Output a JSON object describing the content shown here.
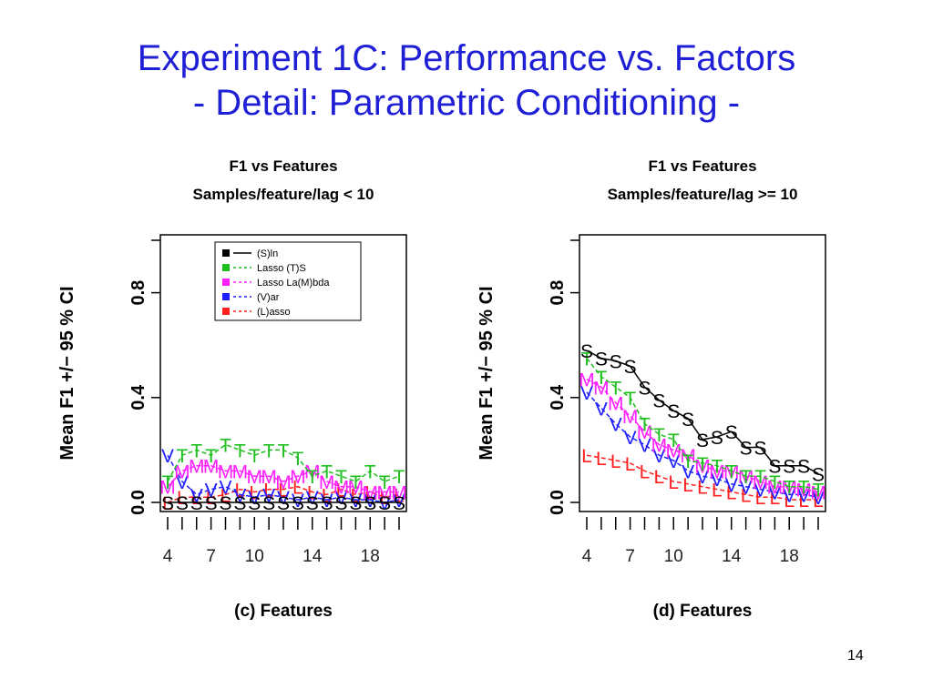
{
  "slide": {
    "title_line1": "Experiment 1C: Performance vs. Factors",
    "title_line2": "- Detail: Parametric Conditioning -",
    "page_number": "14"
  },
  "series_styles": [
    {
      "name": "(S)ln",
      "color": "#000000",
      "glyph": "S"
    },
    {
      "name": "Lasso (T)S",
      "color": "#1fbf1f",
      "glyph": "T"
    },
    {
      "name": "Lasso La(M)bda",
      "color": "#ff1fff",
      "glyph": "M"
    },
    {
      "name": "(V)ar",
      "color": "#1f1fff",
      "glyph": "V"
    },
    {
      "name": "(L)asso",
      "color": "#ff1f1f",
      "glyph": "L"
    }
  ],
  "chart_data": [
    {
      "type": "line",
      "title": "F1 vs Features",
      "subtitle": "Samples/feature/lag < 10",
      "xlabel": "(c) Features",
      "ylabel": "Mean F1 +/− 95 % CI",
      "xlim": [
        4,
        20
      ],
      "ylim": [
        0,
        1
      ],
      "yticks": [
        "0.0",
        "0.4",
        "0.8"
      ],
      "ytick_values": [
        0,
        0.4,
        0.8
      ],
      "xticks": [
        "4",
        "7",
        "10",
        "14",
        "18"
      ],
      "xtick_values": [
        4,
        7,
        10,
        14,
        18
      ],
      "legend": "top-right",
      "x": [
        4,
        5,
        6,
        7,
        8,
        9,
        10,
        11,
        12,
        13,
        14,
        15,
        16,
        17,
        18,
        19,
        20
      ],
      "series": [
        {
          "name": "(S)ln",
          "values": [
            0.0,
            0.0,
            0.0,
            0.0,
            0.0,
            0.0,
            0.0,
            0.0,
            0.0,
            0.0,
            0.0,
            0.0,
            0.0,
            0.0,
            0.0,
            0.0,
            0.0
          ]
        },
        {
          "name": "Lasso (T)S",
          "values": [
            0.08,
            0.18,
            0.2,
            0.18,
            0.22,
            0.2,
            0.18,
            0.2,
            0.2,
            0.17,
            0.1,
            0.12,
            0.1,
            0.08,
            0.12,
            0.08,
            0.1
          ]
        },
        {
          "name": "Lasso La(M)bda",
          "values": [
            0.06,
            0.12,
            0.14,
            0.14,
            0.12,
            0.12,
            0.1,
            0.1,
            0.08,
            0.1,
            0.12,
            0.08,
            0.06,
            0.06,
            0.04,
            0.04,
            0.04
          ]
        },
        {
          "name": "(V)ar",
          "values": [
            0.18,
            0.08,
            0.03,
            0.05,
            0.06,
            0.03,
            0.02,
            0.03,
            0.02,
            0.01,
            0.02,
            0.01,
            0.02,
            0.01,
            0.01,
            0.0,
            0.01
          ]
        },
        {
          "name": "(L)asso",
          "values": [
            0.0,
            0.02,
            0.02,
            0.02,
            0.03,
            0.05,
            0.04,
            0.05,
            0.05,
            0.06,
            0.04,
            0.03,
            0.05,
            0.03,
            0.04,
            0.02,
            0.03
          ]
        }
      ]
    },
    {
      "type": "line",
      "title": "F1 vs Features",
      "subtitle": "Samples/feature/lag >= 10",
      "xlabel": "(d) Features",
      "ylabel": "Mean F1 +/− 95 % CI",
      "xlim": [
        4,
        20
      ],
      "ylim": [
        0,
        1
      ],
      "yticks": [
        "0.0",
        "0.4",
        "0.8"
      ],
      "ytick_values": [
        0,
        0.4,
        0.8
      ],
      "xticks": [
        "4",
        "7",
        "10",
        "14",
        "18"
      ],
      "xtick_values": [
        4,
        7,
        10,
        14,
        18
      ],
      "legend": "none",
      "x": [
        4,
        5,
        6,
        7,
        8,
        9,
        10,
        11,
        12,
        13,
        14,
        15,
        16,
        17,
        18,
        19,
        20
      ],
      "series": [
        {
          "name": "(S)ln",
          "values": [
            0.58,
            0.55,
            0.54,
            0.52,
            0.44,
            0.39,
            0.35,
            0.32,
            0.24,
            0.25,
            0.27,
            0.21,
            0.21,
            0.14,
            0.14,
            0.14,
            0.11
          ]
        },
        {
          "name": "Lasso (T)S",
          "values": [
            0.55,
            0.48,
            0.44,
            0.4,
            0.3,
            0.26,
            0.24,
            0.16,
            0.15,
            0.14,
            0.12,
            0.1,
            0.1,
            0.08,
            0.06,
            0.06,
            0.05
          ]
        },
        {
          "name": "Lasso La(M)bda",
          "values": [
            0.47,
            0.44,
            0.38,
            0.33,
            0.27,
            0.22,
            0.2,
            0.18,
            0.14,
            0.12,
            0.12,
            0.1,
            0.08,
            0.06,
            0.06,
            0.05,
            0.04
          ]
        },
        {
          "name": "(V)ar",
          "values": [
            0.42,
            0.36,
            0.3,
            0.25,
            0.22,
            0.18,
            0.16,
            0.12,
            0.1,
            0.09,
            0.07,
            0.06,
            0.05,
            0.04,
            0.03,
            0.03,
            0.02
          ]
        },
        {
          "name": "(L)asso",
          "values": [
            0.18,
            0.17,
            0.16,
            0.15,
            0.12,
            0.1,
            0.08,
            0.07,
            0.06,
            0.05,
            0.04,
            0.03,
            0.02,
            0.02,
            0.01,
            0.01,
            0.01
          ]
        }
      ]
    }
  ]
}
